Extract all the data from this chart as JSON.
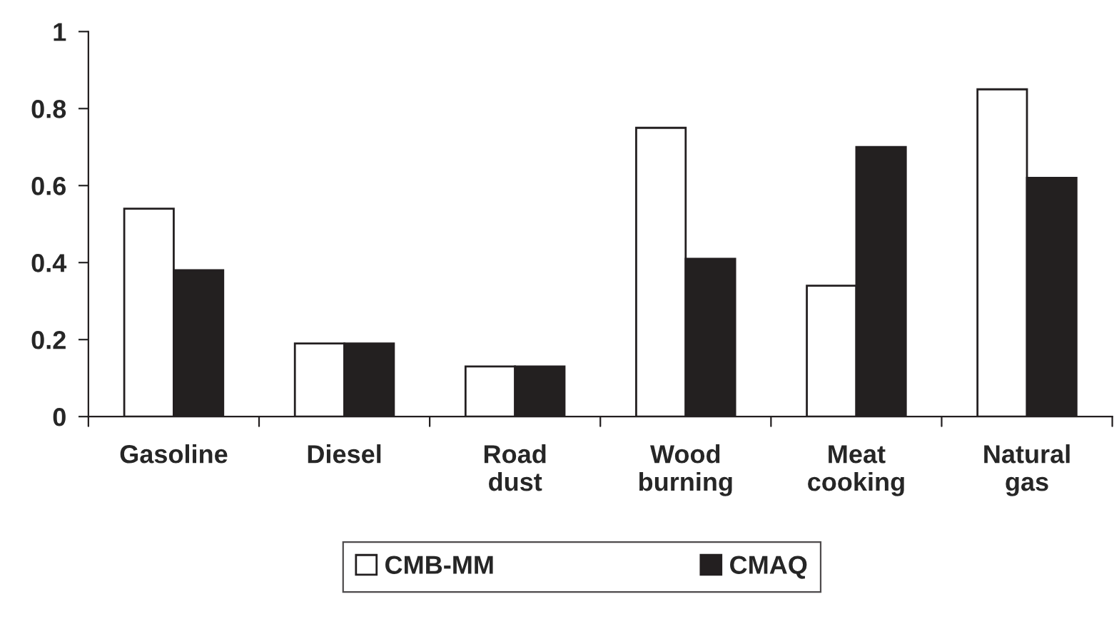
{
  "chart_data": {
    "type": "bar",
    "categories": [
      "Gasoline",
      "Diesel",
      "Road\ndust",
      "Wood\nburning",
      "Meat\ncooking",
      "Natural\ngas"
    ],
    "series": [
      {
        "name": "CMB-MM",
        "color": "#ffffff",
        "values": [
          0.54,
          0.19,
          0.13,
          0.75,
          0.34,
          0.85
        ]
      },
      {
        "name": "CMAQ",
        "color": "#231f20",
        "values": [
          0.38,
          0.19,
          0.13,
          0.41,
          0.7,
          0.62
        ]
      }
    ],
    "ylim": [
      0,
      1
    ],
    "yticks": [
      0,
      0.2,
      0.4,
      0.6,
      0.8,
      1
    ],
    "grid": false,
    "legend": "bottom"
  }
}
